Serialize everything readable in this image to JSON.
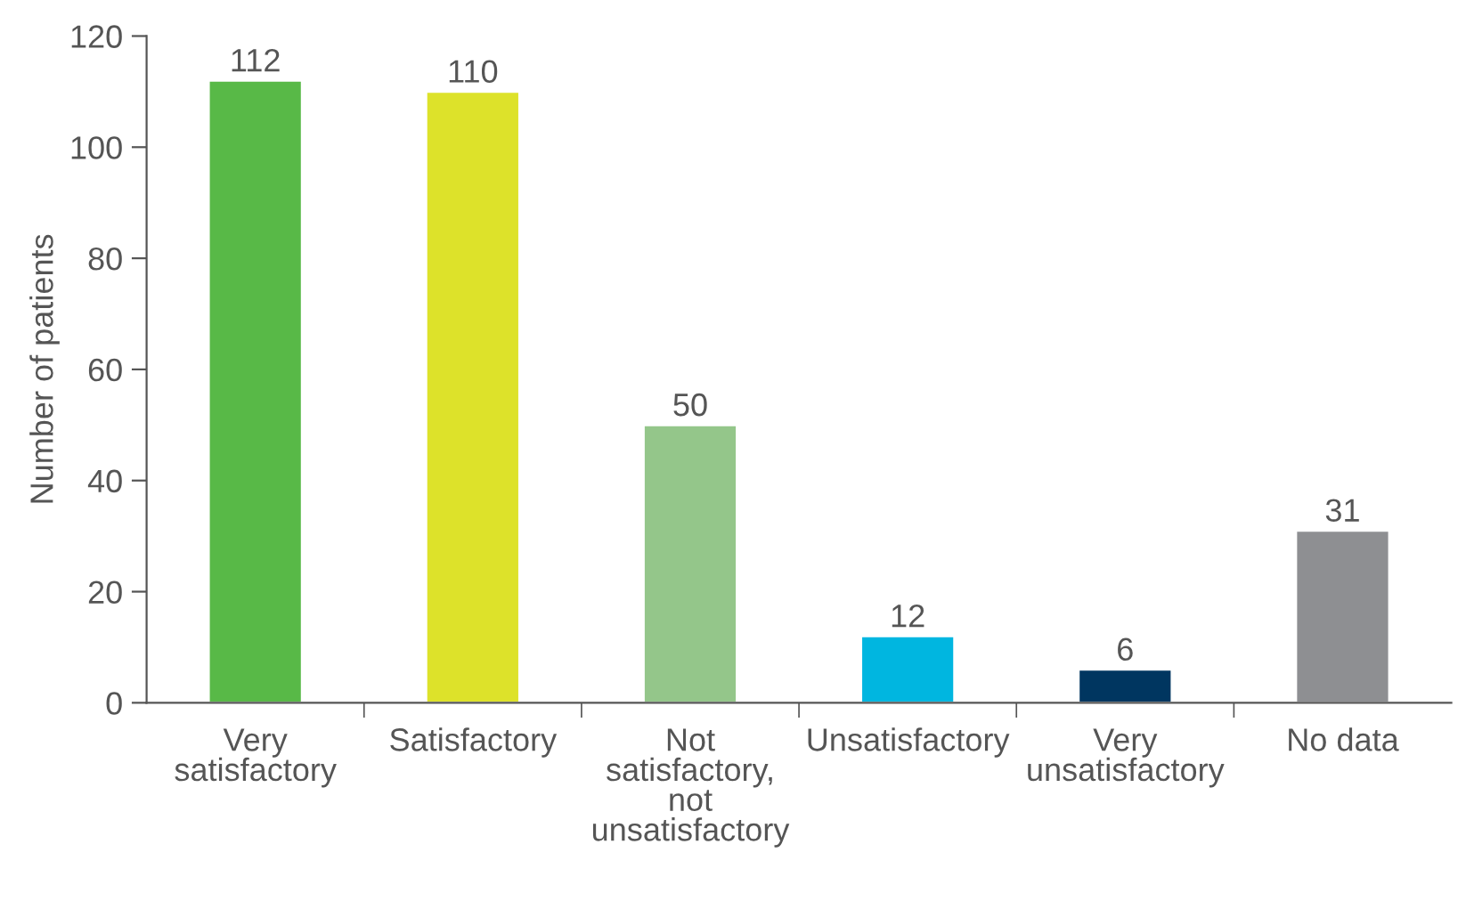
{
  "chart_data": {
    "type": "bar",
    "ylabel": "Number of patients",
    "categories": [
      "Very\nsatisfactory",
      "Satisfactory",
      "Not\nsatisfactory,\nnot\nunsatisfactory",
      "Unsatisfactory",
      "Very\nunsatisfactory",
      "No data"
    ],
    "values": [
      112,
      110,
      50,
      12,
      6,
      31
    ],
    "colors": [
      "#58b947",
      "#dde22a",
      "#94c68a",
      "#00b6e0",
      "#003660",
      "#8e8f92"
    ],
    "ylim": [
      0,
      120
    ],
    "yticks": [
      0,
      20,
      40,
      60,
      80,
      100,
      120
    ],
    "data_labels": true,
    "grid": false,
    "legend": false
  }
}
